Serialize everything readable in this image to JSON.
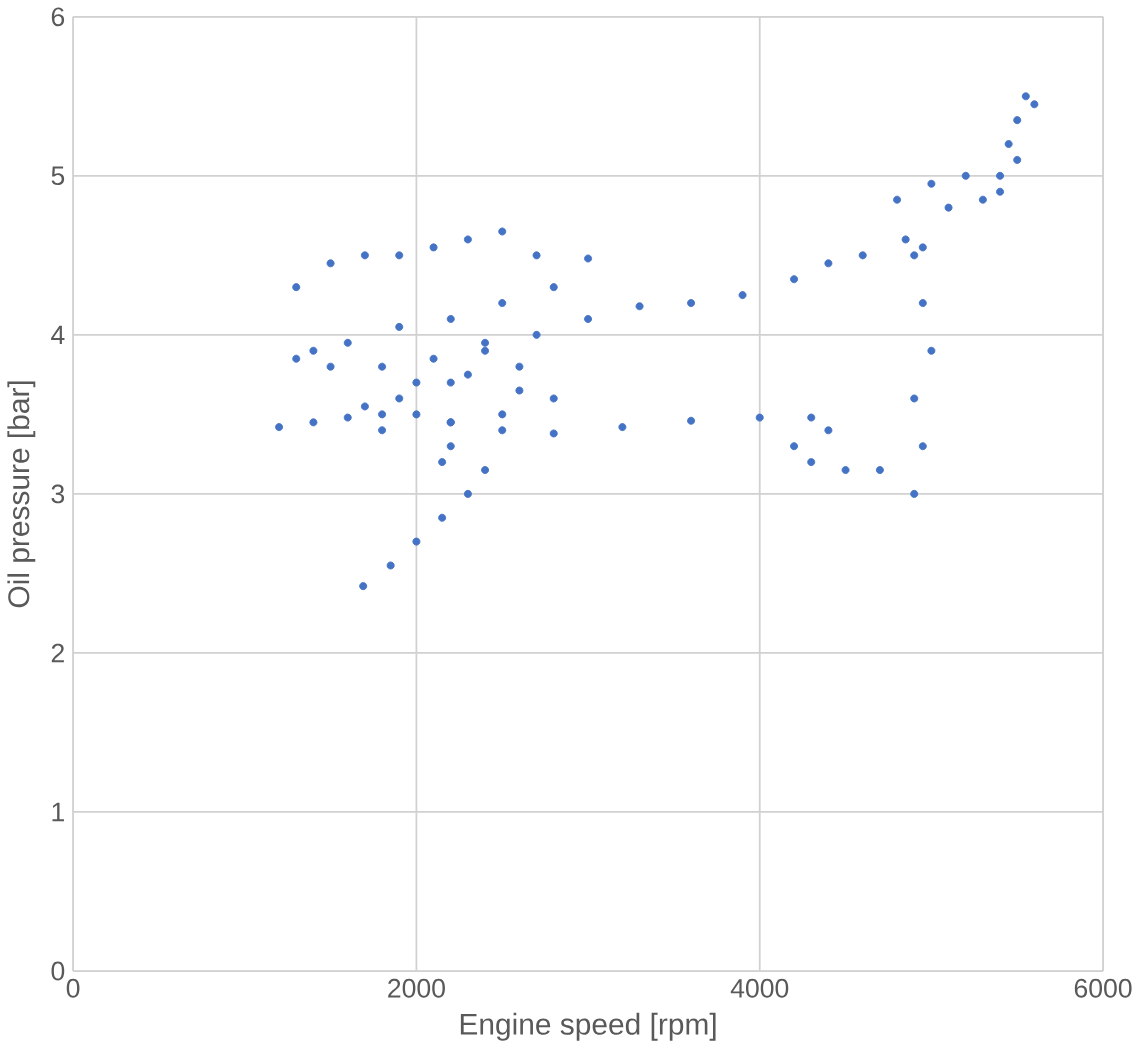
{
  "chart_data": {
    "type": "scatter",
    "xlabel": "Engine speed [rpm]",
    "ylabel": "Oil pressure [bar]",
    "xlim": [
      0,
      6000
    ],
    "xticks": [
      0,
      2000,
      4000,
      6000
    ],
    "ylim": [
      0,
      6
    ],
    "yticks": [
      0,
      1,
      2,
      3,
      4,
      5,
      6
    ],
    "grid": true,
    "marker": "circle",
    "series": [
      {
        "color": "#4472c4",
        "x": [
          1690,
          1850,
          2000,
          2150,
          2300,
          2400,
          1200,
          1400,
          1600,
          1800,
          2000,
          2200,
          2500,
          2800,
          3200,
          3600,
          4000,
          4300,
          4400,
          4200,
          4300,
          4500,
          4700,
          4900,
          4950,
          4900,
          5000,
          4950,
          4900,
          4950,
          4850,
          4600,
          4400,
          4200,
          3900,
          3600,
          3300,
          3000,
          2700,
          2400,
          4800,
          5000,
          5200,
          5400,
          5450,
          5500,
          5550,
          5600,
          5500,
          5400,
          5300,
          5100,
          1300,
          1500,
          1700,
          1900,
          2100,
          2300,
          2500,
          2700,
          3000,
          2800,
          2500,
          2200,
          1900,
          1600,
          1400,
          1300,
          1500,
          1800,
          2100,
          2400,
          2600,
          2200,
          1900,
          1700,
          2000,
          2300,
          2600,
          2800,
          2500,
          2200,
          1800,
          2200,
          2150
        ],
        "values": [
          2.42,
          2.55,
          2.7,
          2.85,
          3.0,
          3.15,
          3.42,
          3.45,
          3.48,
          3.5,
          3.5,
          3.45,
          3.4,
          3.38,
          3.42,
          3.46,
          3.48,
          3.48,
          3.4,
          3.3,
          3.2,
          3.15,
          3.15,
          3.0,
          3.3,
          3.6,
          3.9,
          4.2,
          4.5,
          4.55,
          4.6,
          4.5,
          4.45,
          4.35,
          4.25,
          4.2,
          4.18,
          4.1,
          4.0,
          3.95,
          4.85,
          4.95,
          5.0,
          5.0,
          5.2,
          5.35,
          5.5,
          5.45,
          5.1,
          4.9,
          4.85,
          4.8,
          4.3,
          4.45,
          4.5,
          4.5,
          4.55,
          4.6,
          4.65,
          4.5,
          4.48,
          4.3,
          4.2,
          4.1,
          4.05,
          3.95,
          3.9,
          3.85,
          3.8,
          3.8,
          3.85,
          3.9,
          3.8,
          3.7,
          3.6,
          3.55,
          3.7,
          3.75,
          3.65,
          3.6,
          3.5,
          3.45,
          3.4,
          3.3,
          3.2
        ]
      }
    ]
  }
}
